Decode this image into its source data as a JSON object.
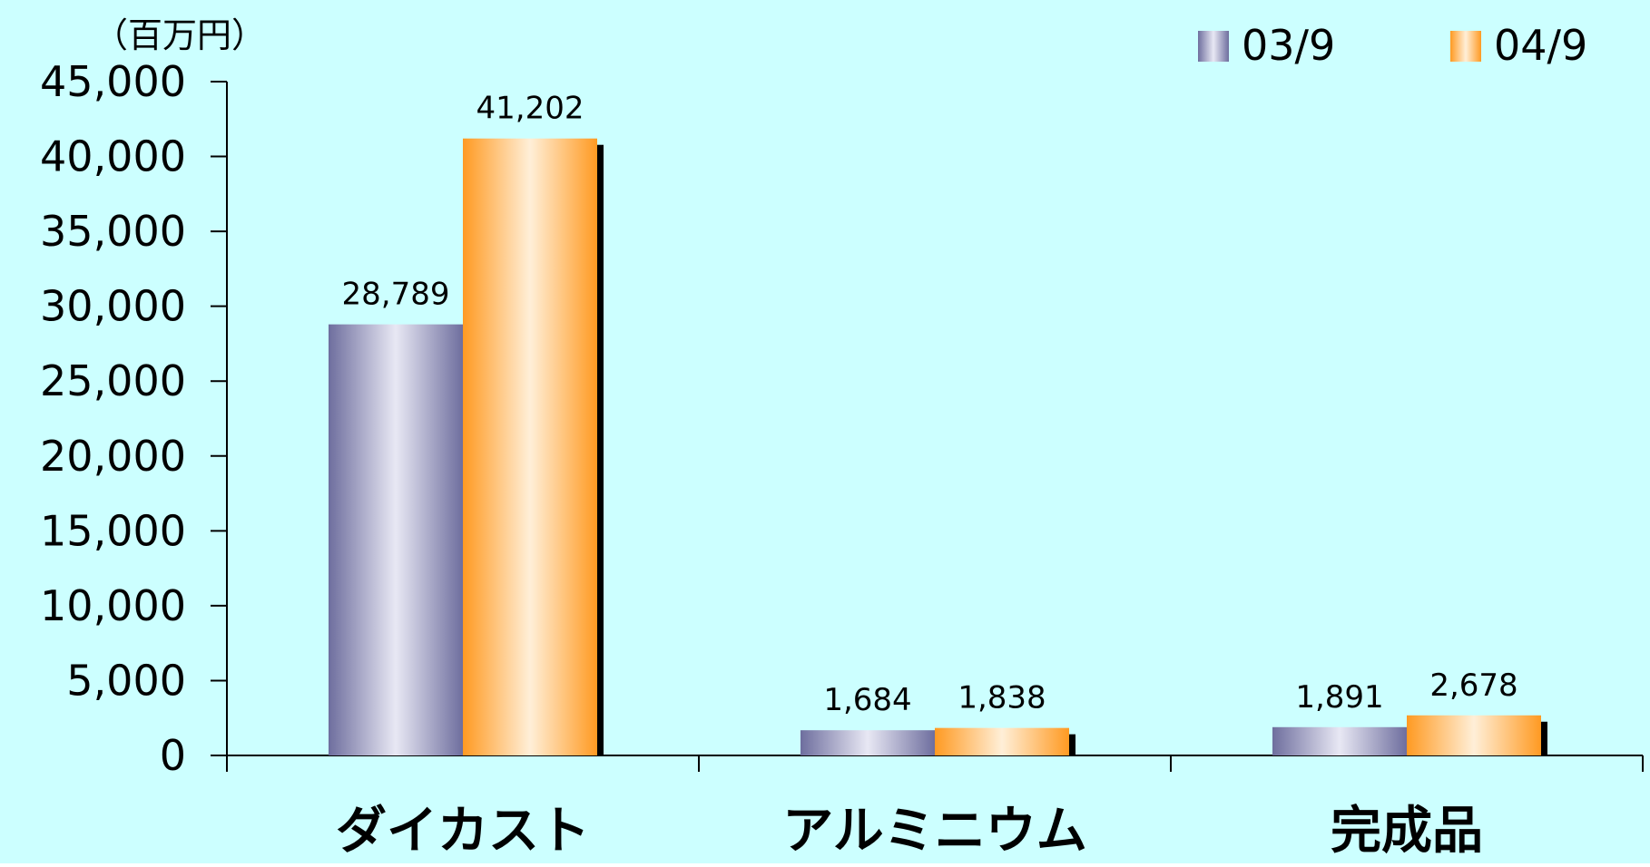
{
  "chart_data": {
    "type": "bar",
    "unit_label": "（百万円）",
    "categories": [
      "ダイカスト",
      "アルミニウム",
      "完成品"
    ],
    "series": [
      {
        "name": "03/9",
        "values": [
          28789,
          1684,
          1891
        ],
        "labels": [
          "28,789",
          "1,684",
          "1,891"
        ]
      },
      {
        "name": "04/9",
        "values": [
          41202,
          1838,
          2678
        ],
        "labels": [
          "41,202",
          "1,838",
          "2,678"
        ]
      }
    ],
    "ylim": [
      0,
      45000
    ],
    "y_ticks": [
      "0",
      "5,000",
      "10,000",
      "15,000",
      "20,000",
      "25,000",
      "30,000",
      "35,000",
      "40,000",
      "45,000"
    ],
    "grid": false,
    "legend_position": "top-right"
  },
  "colors": {
    "background": "#ccffff",
    "series_03": "#7878a8",
    "series_04": "#ff9c2a",
    "axis": "#000000"
  }
}
